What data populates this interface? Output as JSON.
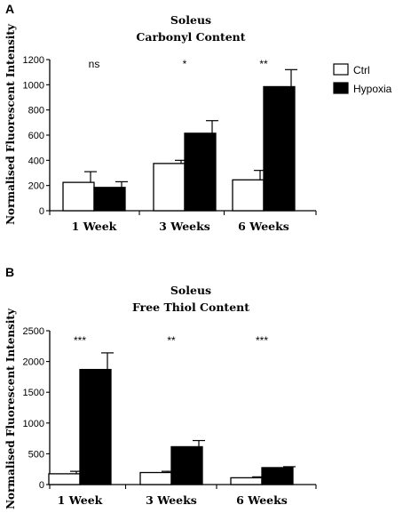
{
  "chart_data": [
    {
      "panel": "A",
      "type": "bar",
      "title": "Soleus",
      "subtitle": "Carbonyl Content",
      "xlabel": "",
      "ylabel": "Normalised Fluorescent Intensity",
      "categories": [
        "1 Week",
        "3 Weeks",
        "6 Weeks"
      ],
      "ylim": [
        0,
        1200
      ],
      "yticks": [
        "0",
        "200",
        "400",
        "600",
        "800",
        "1000",
        "1200"
      ],
      "series": [
        {
          "name": "Ctrl",
          "color": "#ffffff",
          "values": [
            225,
            375,
            245
          ],
          "errors": [
            85,
            25,
            75
          ]
        },
        {
          "name": "Hypoxia",
          "color": "#000000",
          "values": [
            185,
            615,
            985
          ],
          "errors": [
            45,
            100,
            135
          ]
        }
      ],
      "significance": [
        "ns",
        "*",
        "**"
      ],
      "legend_position": "top-right",
      "grid": false
    },
    {
      "panel": "B",
      "type": "bar",
      "title": "Soleus",
      "subtitle": "Free Thiol Content",
      "xlabel": "",
      "ylabel": "Normalised Fluorescent Intensity",
      "categories": [
        "1 Week",
        "3 Weeks",
        "6 Weeks"
      ],
      "ylim": [
        0,
        2500
      ],
      "yticks": [
        "0",
        "500",
        "1000",
        "1500",
        "2000",
        "2500"
      ],
      "series": [
        {
          "name": "Ctrl",
          "color": "#ffffff",
          "values": [
            175,
            195,
            110
          ],
          "errors": [
            40,
            20,
            15
          ]
        },
        {
          "name": "Hypoxia",
          "color": "#000000",
          "values": [
            1870,
            615,
            275
          ],
          "errors": [
            270,
            100,
            15
          ]
        }
      ],
      "significance": [
        "***",
        "**",
        "***"
      ],
      "grid": false
    }
  ]
}
